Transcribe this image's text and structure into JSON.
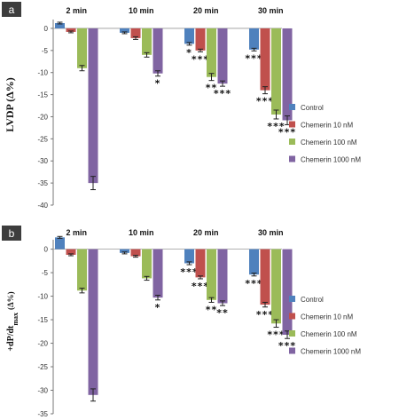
{
  "chart_data": [
    {
      "panel": "a",
      "type": "bar",
      "categories": [
        "2 min",
        "10 min",
        "20 min",
        "30 min"
      ],
      "ylabel": "LVDP (Δ%)",
      "ylim": [
        -40,
        2
      ],
      "yticks": [
        0,
        -5,
        -10,
        -15,
        -20,
        -25,
        -30,
        -35,
        -40
      ],
      "series": [
        {
          "name": "Control",
          "color": "#4f81bd",
          "values": [
            1.2,
            -1.0,
            -3.5,
            -4.8
          ],
          "errors": [
            0.2,
            0.2,
            0.3,
            0.3
          ]
        },
        {
          "name": "Chemerin 10 nM",
          "color": "#c0504d",
          "values": [
            -0.8,
            -2.2,
            -5.0,
            -14.0
          ],
          "errors": [
            0.2,
            0.3,
            0.3,
            0.8
          ]
        },
        {
          "name": "Chemerin 100 nM",
          "color": "#9bbb59",
          "values": [
            -9.0,
            -6.0,
            -11.0,
            -19.5
          ],
          "errors": [
            0.6,
            0.5,
            0.8,
            1.0
          ]
        },
        {
          "name": "Chemerin 1000 nM",
          "color": "#8064a2",
          "values": [
            -35.0,
            -10.2,
            -12.5,
            -20.8
          ],
          "errors": [
            1.5,
            0.6,
            0.6,
            1.0
          ]
        }
      ],
      "significance": [
        [
          "",
          "",
          "*",
          "***"
        ],
        [
          "",
          "",
          "***",
          "***"
        ],
        [
          "",
          "",
          "**",
          "***"
        ],
        [
          "",
          "*",
          "***",
          "***"
        ]
      ]
    },
    {
      "panel": "b",
      "type": "bar",
      "categories": [
        "2 min",
        "10 min",
        "20 min",
        "30 min"
      ],
      "ylabel": "+dP/dt",
      "ylabel_sub": "max",
      "ylabel_suffix": "(Δ%)",
      "ylim": [
        -35,
        2
      ],
      "yticks": [
        0,
        -5,
        -10,
        -15,
        -20,
        -25,
        -30,
        -35
      ],
      "series": [
        {
          "name": "Control",
          "color": "#4f81bd",
          "values": [
            2.5,
            -0.8,
            -3.0,
            -5.4
          ],
          "errors": [
            0.2,
            0.2,
            0.3,
            0.3
          ]
        },
        {
          "name": "Chemerin 10 nM",
          "color": "#c0504d",
          "values": [
            -1.2,
            -1.5,
            -6.0,
            -11.8
          ],
          "errors": [
            0.2,
            0.2,
            0.3,
            0.5
          ]
        },
        {
          "name": "Chemerin 100 nM",
          "color": "#9bbb59",
          "values": [
            -8.8,
            -6.2,
            -10.8,
            -15.8
          ],
          "errors": [
            0.5,
            0.4,
            0.5,
            0.8
          ]
        },
        {
          "name": "Chemerin 1000 nM",
          "color": "#8064a2",
          "values": [
            -31.0,
            -10.3,
            -11.5,
            -18.2
          ],
          "errors": [
            1.3,
            0.5,
            0.5,
            0.8
          ]
        }
      ],
      "significance": [
        [
          "",
          "",
          "***",
          "***"
        ],
        [
          "",
          "",
          "***",
          "***"
        ],
        [
          "",
          "",
          "**",
          "***"
        ],
        [
          "",
          "*",
          "**",
          "***"
        ]
      ]
    }
  ]
}
